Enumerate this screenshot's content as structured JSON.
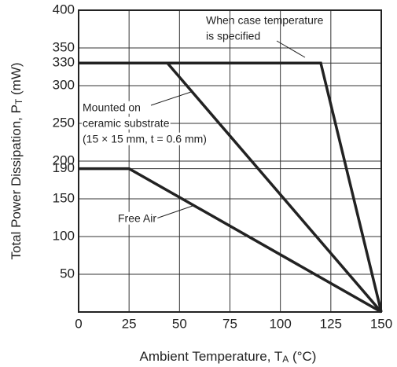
{
  "chart_data": {
    "type": "line",
    "xlabel": [
      "Ambient Temperature, T",
      "A",
      " (°C)"
    ],
    "ylabel": [
      "Total Power Dissipation, P",
      "T",
      " (mW)"
    ],
    "xlim": [
      0,
      150
    ],
    "ylim": [
      0,
      400
    ],
    "xticks": [
      0,
      25,
      50,
      75,
      100,
      125,
      150
    ],
    "yticks": [
      50,
      100,
      150,
      190,
      200,
      250,
      300,
      330,
      350,
      400
    ],
    "grid": true,
    "series": [
      {
        "label": [
          "When case temperature",
          "is specified"
        ],
        "color": "#222222",
        "x": [
          0,
          120,
          150
        ],
        "y": [
          330,
          330,
          0
        ]
      },
      {
        "label": [
          "Mounted on",
          "ceramic substrate",
          "(15 × 15 mm, t = 0.6 mm)"
        ],
        "color": "#222222",
        "x": [
          0,
          44,
          150
        ],
        "y": [
          330,
          330,
          0
        ]
      },
      {
        "label": [
          "Free Air"
        ],
        "color": "#222222",
        "x": [
          0,
          25,
          150
        ],
        "y": [
          190,
          190,
          0
        ]
      }
    ]
  }
}
